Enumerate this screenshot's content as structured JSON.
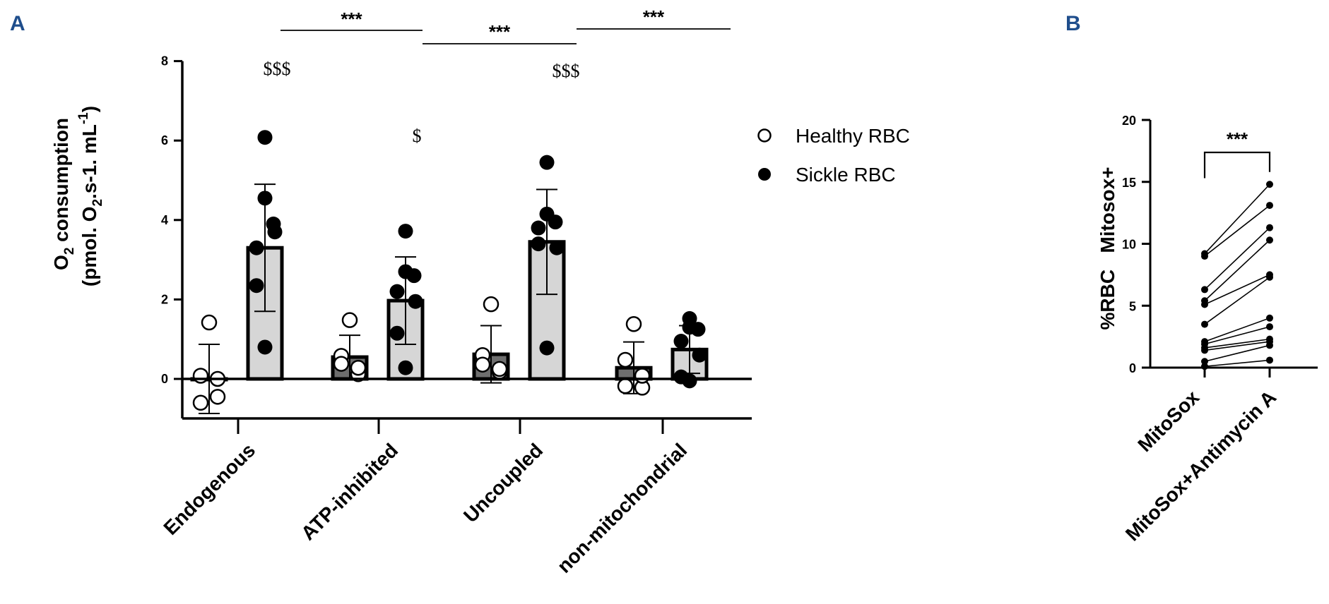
{
  "panels": {
    "a_label": "A",
    "b_label": "B"
  },
  "chart_data": [
    {
      "type": "bar",
      "panel": "A",
      "title": "",
      "ylabel_main": "O",
      "ylabel_main_sub": "2",
      "ylabel_main_rest": " consumption",
      "ylabel_units": "(pmol. O",
      "ylabel_units_sub": "2",
      "ylabel_units_mid": ".s-1. mL",
      "ylabel_units_sup": "-1",
      "ylabel_units_end": ")",
      "ylim": [
        -1,
        8
      ],
      "yticks": [
        "8",
        "6",
        "4",
        "2",
        "0"
      ],
      "categories": [
        "Endogenous",
        "ATP-inhibited",
        "Uncoupled",
        "non-mitochondrial"
      ],
      "legend": {
        "position": "right",
        "entries": [
          "Healthy RBC",
          "Sickle RBC"
        ]
      },
      "series": [
        {
          "name": "Healthy RBC",
          "marker": "open-circle",
          "bar_fill": "#6e6e6e",
          "means": [
            0.0,
            0.55,
            0.62,
            0.28
          ],
          "sd": [
            0.87,
            0.55,
            0.72,
            0.65
          ],
          "points": [
            [
              1.42,
              0.08,
              0.0,
              -0.6,
              -0.45
            ],
            [
              1.48,
              0.58,
              0.12,
              0.38,
              0.28
            ],
            [
              1.88,
              0.6,
              0.18,
              0.36,
              0.25
            ],
            [
              1.38,
              0.48,
              -0.22,
              -0.18,
              0.08
            ]
          ]
        },
        {
          "name": "Sickle RBC",
          "marker": "filled-circle",
          "bar_fill": "#d6d6d6",
          "means": [
            3.3,
            1.97,
            3.45,
            0.74
          ],
          "sd": [
            1.6,
            1.1,
            1.32,
            0.6
          ],
          "points": [
            [
              6.08,
              4.55,
              3.9,
              3.3,
              3.7,
              2.35,
              0.8
            ],
            [
              3.72,
              2.7,
              2.6,
              2.2,
              1.95,
              1.15,
              0.28
            ],
            [
              5.45,
              4.15,
              3.95,
              3.8,
              3.3,
              3.4,
              0.78
            ],
            [
              1.52,
              1.3,
              1.25,
              0.95,
              0.6,
              0.05,
              -0.05
            ]
          ]
        }
      ],
      "significance": {
        "brackets": [
          {
            "label": "***",
            "between": "Endogenous sickle vs ATP-inhibited sickle"
          },
          {
            "label": "***",
            "between": "ATP-inhibited sickle vs Uncoupled sickle"
          },
          {
            "label": "***",
            "between": "Uncoupled sickle vs non-mitochondrial sickle"
          }
        ],
        "dollar_marks": [
          {
            "category": "Endogenous",
            "label": "$$$"
          },
          {
            "category": "ATP-inhibited",
            "label": "$"
          },
          {
            "category": "Uncoupled",
            "label": "$$$"
          }
        ]
      }
    },
    {
      "type": "line",
      "panel": "B",
      "ylabel": "%RBC   Mitosox+",
      "ylim": [
        0,
        20
      ],
      "yticks": [
        "20",
        "15",
        "10",
        "5",
        "0"
      ],
      "categories": [
        "MitoSox",
        "MitoSox+Antimycin A"
      ],
      "pairs": [
        [
          9.2,
          14.8
        ],
        [
          9.0,
          13.1
        ],
        [
          6.3,
          11.3
        ],
        [
          5.4,
          10.3
        ],
        [
          5.1,
          7.5
        ],
        [
          3.5,
          7.3
        ],
        [
          2.1,
          4.0
        ],
        [
          1.9,
          3.3
        ],
        [
          1.6,
          2.3
        ],
        [
          1.4,
          2.1
        ],
        [
          0.5,
          1.8
        ],
        [
          0.1,
          0.6
        ]
      ],
      "significance": {
        "label": "***"
      }
    }
  ]
}
